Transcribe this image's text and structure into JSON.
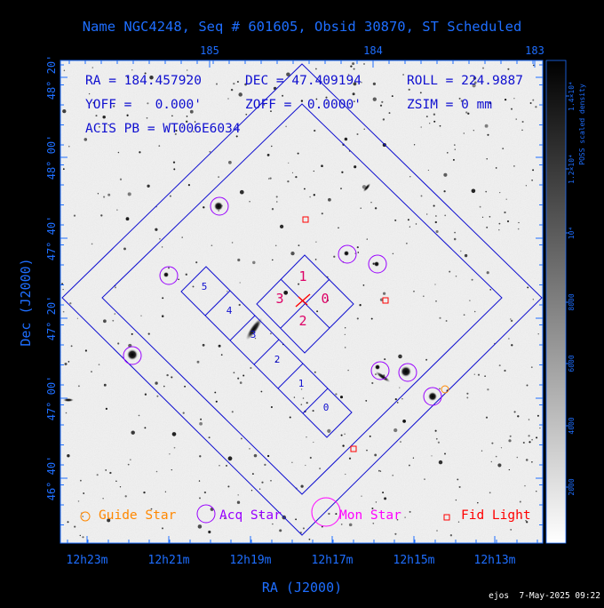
{
  "chart_data": {
    "type": "scatter",
    "title": "Name NGC4248, Seq # 601605, Obsid 30870, ST Scheduled",
    "xlabel": "RA (J2000)",
    "ylabel": "Dec (J2000)",
    "x_ticks_bottom": [
      "12h23m",
      "12h21m",
      "12h19m",
      "12h17m",
      "12h15m",
      "12h13m"
    ],
    "x_ticks_top": [
      "185",
      "184",
      "183"
    ],
    "y_ticks": [
      "48° 20'",
      "48° 00'",
      "47° 40'",
      "47° 20'",
      "47° 00'",
      "46° 40'"
    ],
    "colorbar_label": "POSS scaled density",
    "colorbar_ticks": [
      "2000",
      "4000",
      "6000",
      "8000",
      "10⁴",
      "1.2×10⁴",
      "1.4×10⁴"
    ],
    "info": {
      "line1": [
        "RA = 184.457920",
        "DEC = 47.409194",
        "ROLL = 224.9887"
      ],
      "line2": [
        "YOFF =   0.000'",
        "ZOFF =  0.0000'",
        "ZSIM = 0 mm"
      ],
      "line3": "ACIS PB = WT006E6034"
    },
    "chip_labels": {
      "i": [
        "0",
        "1",
        "2",
        "3"
      ],
      "s": [
        "5",
        "4",
        "3",
        "2",
        "1",
        "0"
      ]
    },
    "legend": [
      {
        "label": "Guide Star",
        "color": "#ff8800",
        "marker": "small-circle"
      },
      {
        "label": "Acq Star",
        "color": "#9900ff",
        "marker": "circle"
      },
      {
        "label": "Mon Star",
        "color": "#ff00ff",
        "marker": "large-circle"
      },
      {
        "label": "Fid Light",
        "color": "#ff0000",
        "marker": "square"
      }
    ],
    "colors": {
      "axis": "#1e6eff",
      "fov": "#1010d0",
      "acis_label": "#dd0066",
      "acq": "#9900ff",
      "guide": "#ff8800",
      "fid": "#ff0000",
      "target": "#ff0000"
    },
    "footer": "ejos  7-May-2025 09:22"
  }
}
